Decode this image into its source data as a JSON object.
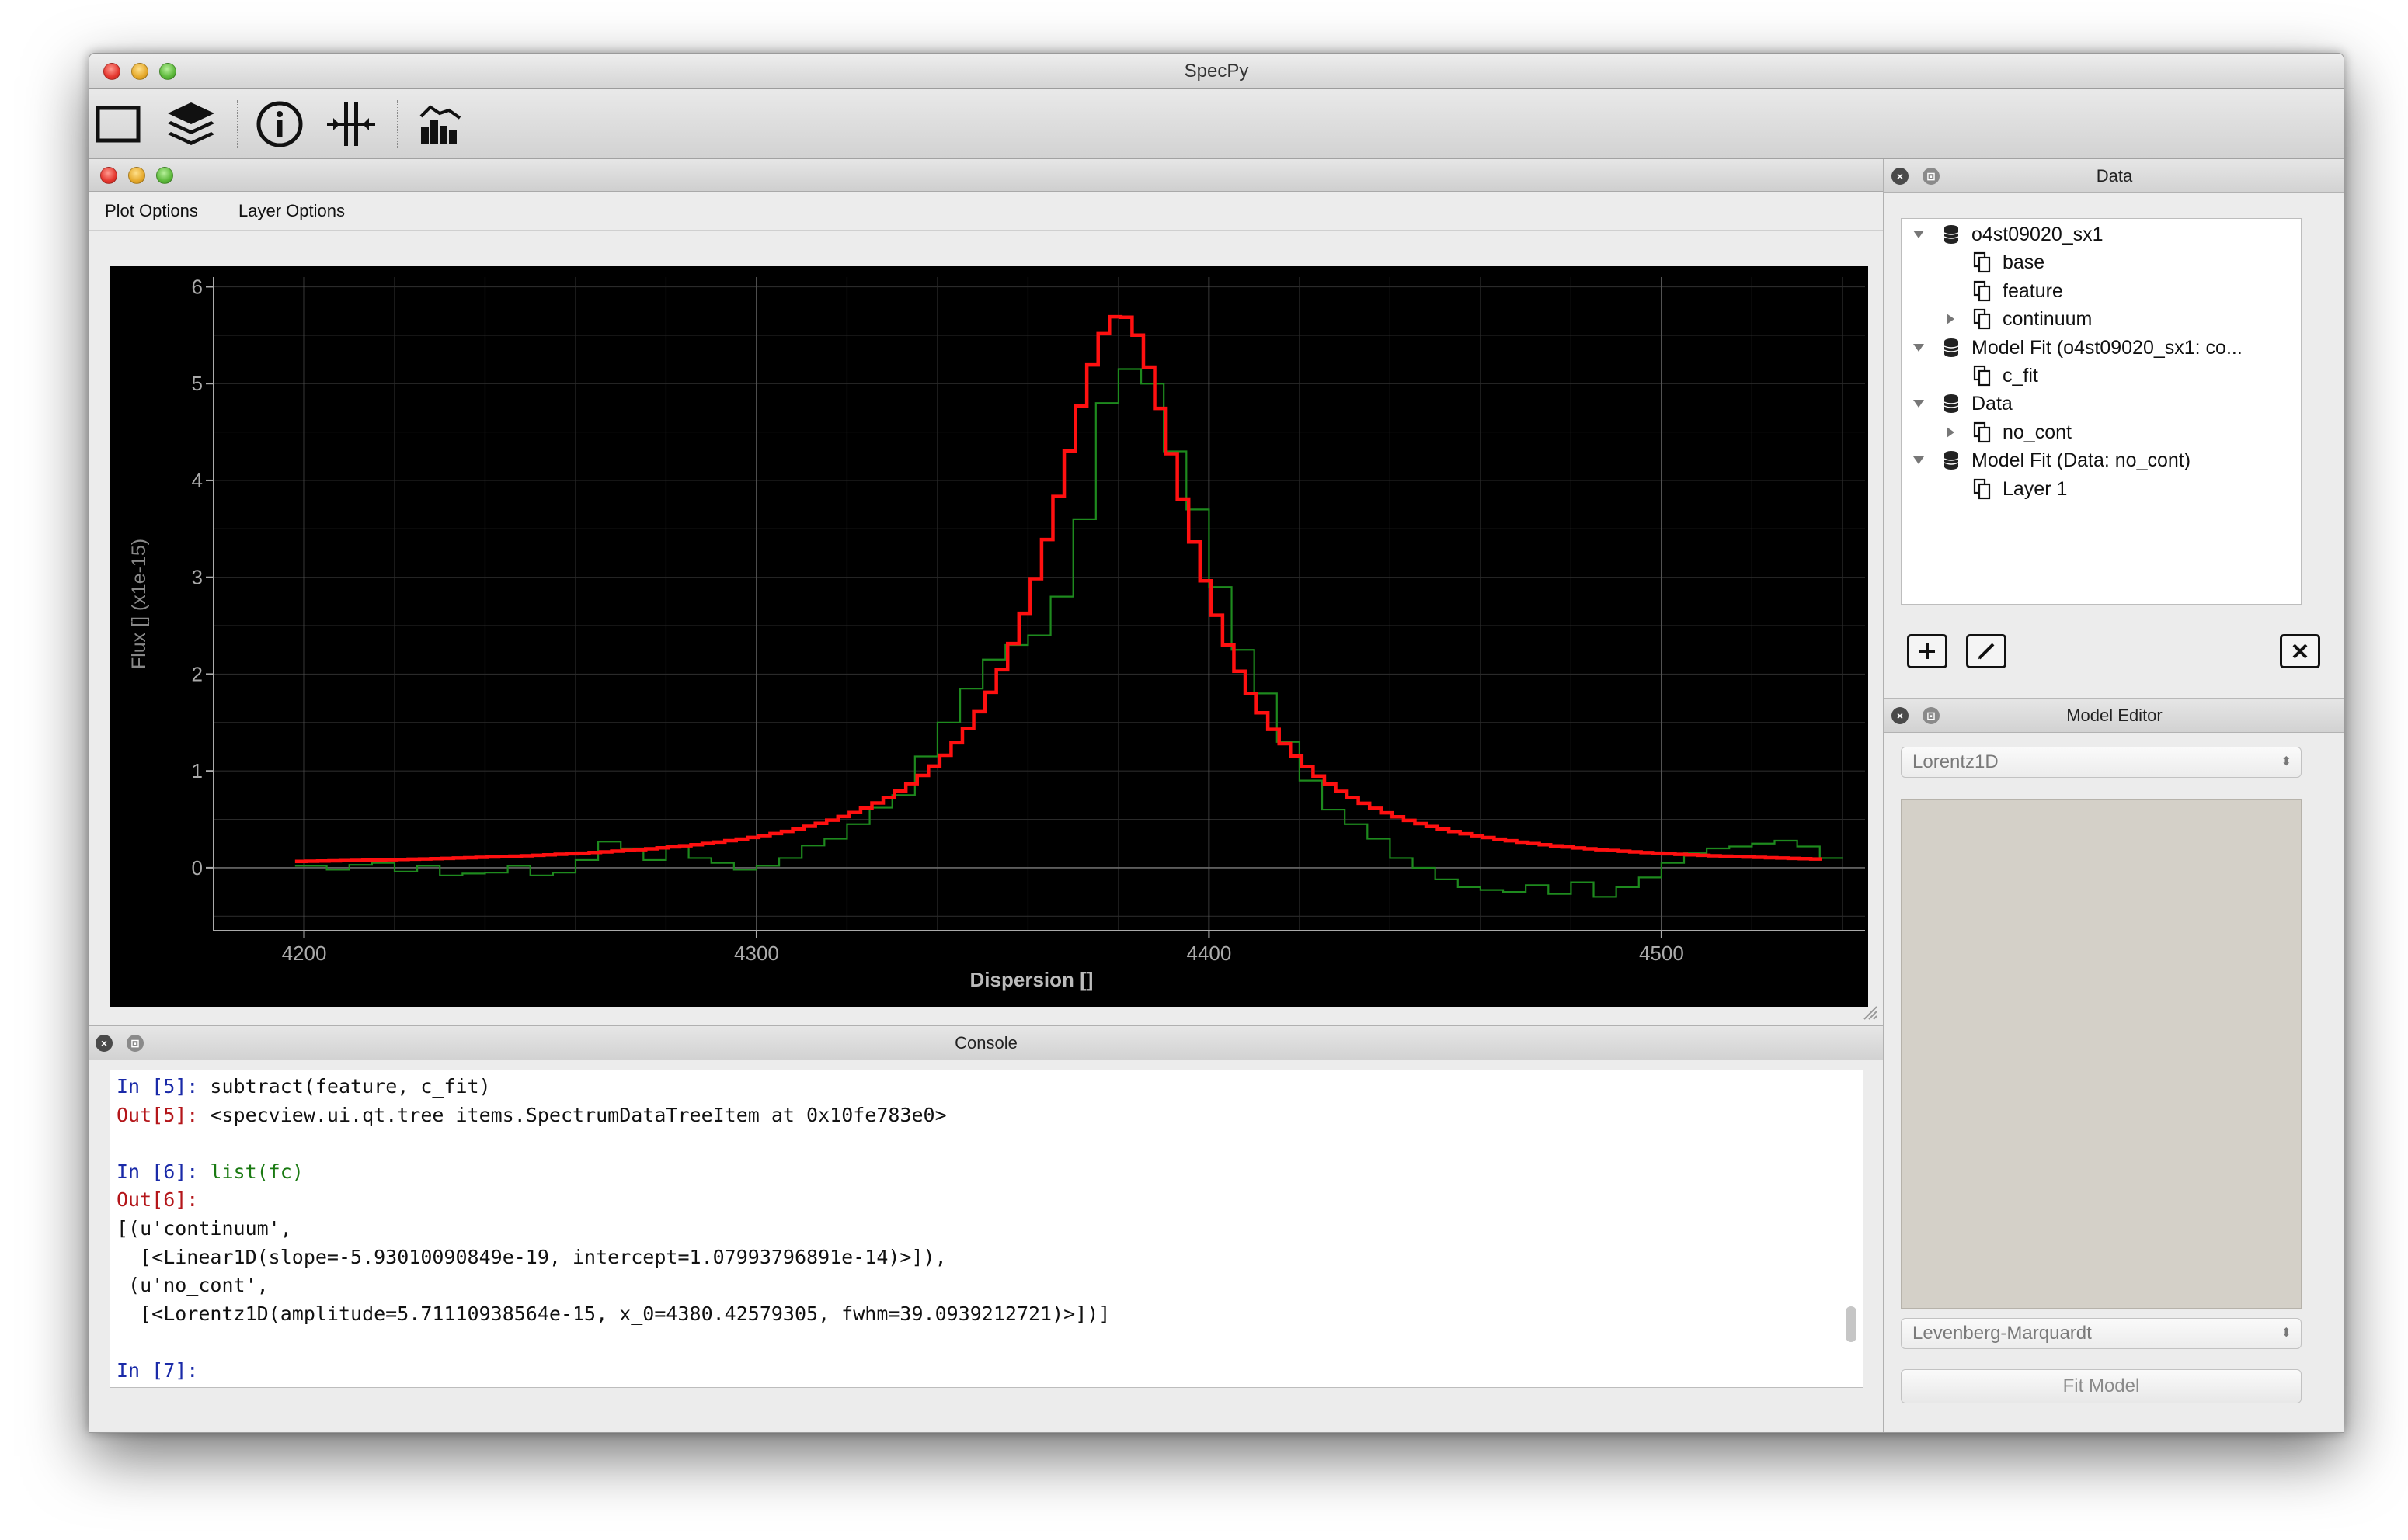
{
  "app": {
    "title": "SpecPy"
  },
  "toolbar": {
    "icons": [
      "new-window-icon",
      "layers-icon",
      "info-icon",
      "split-line-icon",
      "histogram-icon"
    ]
  },
  "plot_window": {
    "menu": [
      "Plot Options",
      "Layer Options"
    ]
  },
  "chart_data": {
    "type": "line",
    "xlabel": "Dispersion []",
    "ylabel": "Flux [] (x1e-15)",
    "xlim": [
      4180,
      4545
    ],
    "ylim": [
      -0.65,
      6.1
    ],
    "x_ticks": [
      4200,
      4300,
      4400,
      4500
    ],
    "y_ticks": [
      0,
      1,
      2,
      3,
      4,
      5,
      6
    ],
    "grid": true,
    "background": "#000000",
    "step": true,
    "series": [
      {
        "color": "#1e8a1e",
        "x": [
          4198,
          4205,
          4210,
          4215,
          4220,
          4225,
          4230,
          4235,
          4240,
          4245,
          4250,
          4255,
          4260,
          4265,
          4270,
          4275,
          4280,
          4285,
          4290,
          4295,
          4300,
          4305,
          4310,
          4315,
          4320,
          4325,
          4330,
          4335,
          4340,
          4345,
          4350,
          4355,
          4360,
          4365,
          4370,
          4375,
          4380,
          4385,
          4390,
          4395,
          4400,
          4405,
          4410,
          4415,
          4420,
          4425,
          4430,
          4435,
          4440,
          4445,
          4450,
          4455,
          4460,
          4465,
          4470,
          4475,
          4480,
          4485,
          4490,
          4495,
          4500,
          4505,
          4510,
          4515,
          4520,
          4525,
          4530,
          4535
        ],
        "y": [
          0.02,
          -0.02,
          0.03,
          0.05,
          -0.04,
          0.02,
          -0.08,
          -0.06,
          -0.05,
          0.02,
          -0.08,
          -0.05,
          0.08,
          0.27,
          0.2,
          0.08,
          0.22,
          0.1,
          0.05,
          -0.02,
          0.02,
          0.1,
          0.23,
          0.3,
          0.45,
          0.62,
          0.75,
          1.15,
          1.5,
          1.85,
          2.15,
          2.3,
          2.4,
          2.8,
          3.6,
          4.8,
          5.15,
          5.0,
          4.3,
          3.7,
          2.9,
          2.25,
          1.8,
          1.3,
          0.9,
          0.6,
          0.45,
          0.3,
          0.1,
          0.0,
          -0.12,
          -0.2,
          -0.23,
          -0.25,
          -0.18,
          -0.27,
          -0.15,
          -0.3,
          -0.2,
          -0.1,
          0.05,
          0.15,
          0.2,
          0.22,
          0.25,
          0.28,
          0.22,
          0.1
        ]
      },
      {
        "color": "#ff1010",
        "model": "Lorentz1D",
        "amplitude": 5.71110938564,
        "x_0": 4380.42579305,
        "fwhm": 39.0939212721,
        "x_range": [
          4198,
          4535
        ],
        "offset": 0.0
      }
    ]
  },
  "console": {
    "title": "Console",
    "lines": [
      {
        "prompt": "In [5]: ",
        "text": "subtract(feature, c_fit)",
        "kind": "in"
      },
      {
        "prompt": "Out[5]: ",
        "text": "<specview.ui.qt.tree_items.SpectrumDataTreeItem at 0x10fe783e0>",
        "kind": "out"
      },
      {
        "prompt": "",
        "text": "",
        "kind": "blank"
      },
      {
        "prompt": "In [6]: ",
        "text": "list(fc)",
        "kind": "in-green"
      },
      {
        "prompt": "Out[6]:",
        "text": "",
        "kind": "out"
      },
      {
        "prompt": "",
        "text": "[(u'continuum',",
        "kind": "plain"
      },
      {
        "prompt": "",
        "text": "  [<Linear1D(slope=-5.93010090849e-19, intercept=1.07993796891e-14)>]),",
        "kind": "plain"
      },
      {
        "prompt": "",
        "text": " (u'no_cont',",
        "kind": "plain"
      },
      {
        "prompt": "",
        "text": "  [<Lorentz1D(amplitude=5.71110938564e-15, x_0=4380.42579305, fwhm=39.0939212721)>])]",
        "kind": "plain"
      },
      {
        "prompt": "",
        "text": "",
        "kind": "blank"
      },
      {
        "prompt": "In [7]:",
        "text": "",
        "kind": "in"
      }
    ]
  },
  "data_panel": {
    "title": "Data",
    "tree": [
      {
        "label": "o4st09020_sx1",
        "level": 0,
        "arrow": "down",
        "icon": "database-icon"
      },
      {
        "label": "base",
        "level": 1,
        "arrow": "none",
        "icon": "layer-icon"
      },
      {
        "label": "feature",
        "level": 1,
        "arrow": "none",
        "icon": "layer-icon"
      },
      {
        "label": "continuum",
        "level": 1,
        "arrow": "right",
        "icon": "layer-icon"
      },
      {
        "label": "Model Fit (o4st09020_sx1: co...",
        "level": 0,
        "arrow": "down",
        "icon": "database-icon"
      },
      {
        "label": "c_fit",
        "level": 1,
        "arrow": "none",
        "icon": "layer-icon"
      },
      {
        "label": "Data",
        "level": 0,
        "arrow": "down",
        "icon": "database-icon"
      },
      {
        "label": "no_cont",
        "level": 1,
        "arrow": "right",
        "icon": "layer-icon"
      },
      {
        "label": "Model Fit (Data: no_cont)",
        "level": 0,
        "arrow": "down",
        "icon": "database-icon"
      },
      {
        "label": "Layer 1",
        "level": 1,
        "arrow": "none",
        "icon": "layer-icon"
      }
    ]
  },
  "model_editor": {
    "title": "Model Editor",
    "model_select": "Lorentz1D",
    "fitter_select": "Levenberg-Marquardt",
    "fit_button": "Fit Model"
  }
}
